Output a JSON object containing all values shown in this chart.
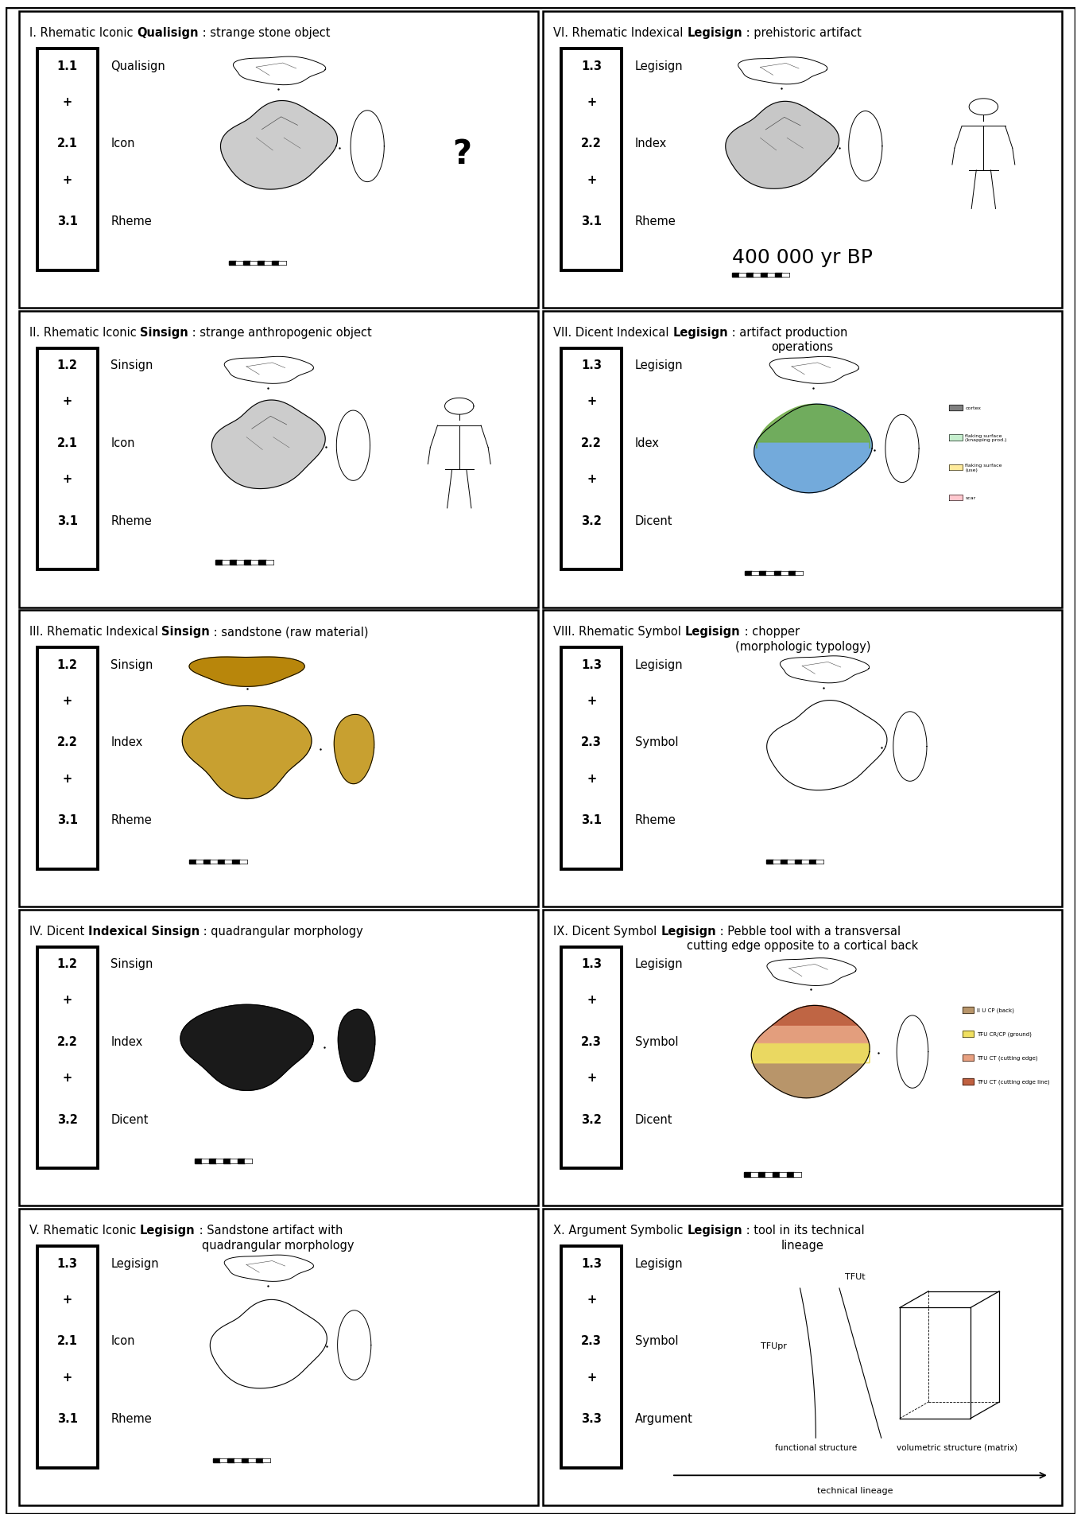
{
  "fig_width": 13.6,
  "fig_height": 19.15,
  "dpi": 100,
  "panels": [
    {
      "id": "I",
      "title_parts": [
        {
          "text": "I. Rhematic Iconic ",
          "bold": false
        },
        {
          "text": "Qualisign",
          "bold": true
        },
        {
          "text": " : strange stone object",
          "bold": false
        }
      ],
      "title_line2": "",
      "row": 0,
      "col": 0,
      "box_numbers": [
        "1.1",
        "+",
        "2.1",
        "+",
        "3.1"
      ],
      "box_labels": [
        "Qualisign",
        "",
        "Icon",
        "",
        "Rheme"
      ],
      "extra_symbol": "?",
      "extra_text": "",
      "has_human": false,
      "artifact_type": "chopper_gray"
    },
    {
      "id": "VI",
      "title_parts": [
        {
          "text": "VI. Rhematic Indexical ",
          "bold": false
        },
        {
          "text": "Legisign",
          "bold": true
        },
        {
          "text": " : prehistoric artifact",
          "bold": false
        }
      ],
      "title_line2": "",
      "row": 0,
      "col": 1,
      "box_numbers": [
        "1.3",
        "+",
        "2.2",
        "+",
        "3.1"
      ],
      "box_labels": [
        "Legisign",
        "",
        "Index",
        "",
        "Rheme"
      ],
      "extra_symbol": "",
      "extra_text": "400 000 yr BP",
      "has_human": true,
      "artifact_type": "chopper_outline"
    },
    {
      "id": "II",
      "title_parts": [
        {
          "text": "II. Rhematic Iconic ",
          "bold": false
        },
        {
          "text": "Sinsign",
          "bold": true
        },
        {
          "text": " : strange anthropogenic object",
          "bold": false
        }
      ],
      "title_line2": "",
      "row": 1,
      "col": 0,
      "box_numbers": [
        "1.2",
        "+",
        "2.1",
        "+",
        "3.1"
      ],
      "box_labels": [
        "Sinsign",
        "",
        "Icon",
        "",
        "Rheme"
      ],
      "extra_symbol": "",
      "extra_text": "",
      "has_human": true,
      "artifact_type": "chopper_gray"
    },
    {
      "id": "VII",
      "title_parts": [
        {
          "text": "VII. Dicent Indexical ",
          "bold": false
        },
        {
          "text": "Legisign",
          "bold": true
        },
        {
          "text": " : artifact production",
          "bold": false
        }
      ],
      "title_line2": "operations",
      "row": 1,
      "col": 1,
      "box_numbers": [
        "1.3",
        "+",
        "2.2",
        "+",
        "3.2"
      ],
      "box_labels": [
        "Legisign",
        "",
        "Idex",
        "",
        "Dicent"
      ],
      "extra_symbol": "",
      "extra_text": "",
      "has_human": false,
      "artifact_type": "chopper_colored_vii"
    },
    {
      "id": "III",
      "title_parts": [
        {
          "text": "III. Rhematic Indexical ",
          "bold": false
        },
        {
          "text": "Sinsign",
          "bold": true
        },
        {
          "text": " : sandstone (raw material)",
          "bold": false
        }
      ],
      "title_line2": "",
      "row": 2,
      "col": 0,
      "box_numbers": [
        "1.2",
        "+",
        "2.2",
        "+",
        "3.1"
      ],
      "box_labels": [
        "Sinsign",
        "",
        "Index",
        "",
        "Rheme"
      ],
      "extra_symbol": "",
      "extra_text": "",
      "has_human": false,
      "artifact_type": "stone_brown"
    },
    {
      "id": "VIII",
      "title_parts": [
        {
          "text": "VIII. Rhematic Symbol ",
          "bold": false
        },
        {
          "text": "Legisign",
          "bold": true
        },
        {
          "text": " : chopper",
          "bold": false
        }
      ],
      "title_line2": "(morphologic typology)",
      "row": 2,
      "col": 1,
      "box_numbers": [
        "1.3",
        "+",
        "2.3",
        "+",
        "3.1"
      ],
      "box_labels": [
        "Legisign",
        "",
        "Symbol",
        "",
        "Rheme"
      ],
      "extra_symbol": "",
      "extra_text": "",
      "has_human": false,
      "artifact_type": "chopper_outline_stippled"
    },
    {
      "id": "IV",
      "title_parts": [
        {
          "text": "IV. Dicent ",
          "bold": false
        },
        {
          "text": "Indexical Sinsign",
          "bold": true
        },
        {
          "text": " : quadrangular morphology",
          "bold": false
        }
      ],
      "title_line2": "",
      "row": 3,
      "col": 0,
      "box_numbers": [
        "1.2",
        "+",
        "2.2",
        "+",
        "3.2"
      ],
      "box_labels": [
        "Sinsign",
        "",
        "Index",
        "",
        "Dicent"
      ],
      "extra_symbol": "",
      "extra_text": "",
      "has_human": false,
      "artifact_type": "stone_dark"
    },
    {
      "id": "IX",
      "title_parts": [
        {
          "text": "IX. Dicent Symbol ",
          "bold": false
        },
        {
          "text": "Legisign",
          "bold": true
        },
        {
          "text": " : Pebble tool with a transversal",
          "bold": false
        }
      ],
      "title_line2": "cutting edge opposite to a cortical back",
      "row": 3,
      "col": 1,
      "box_numbers": [
        "1.3",
        "+",
        "2.3",
        "+",
        "3.2"
      ],
      "box_labels": [
        "Legisign",
        "",
        "Symbol",
        "",
        "Dicent"
      ],
      "extra_symbol": "",
      "extra_text": "",
      "has_human": false,
      "artifact_type": "chopper_colored_ix"
    },
    {
      "id": "V",
      "title_parts": [
        {
          "text": "V. Rhematic Iconic ",
          "bold": false
        },
        {
          "text": "Legisign",
          "bold": true
        },
        {
          "text": " : Sandstone artifact with",
          "bold": false
        }
      ],
      "title_line2": "quadrangular morphology",
      "row": 4,
      "col": 0,
      "box_numbers": [
        "1.3",
        "+",
        "2.1",
        "+",
        "3.1"
      ],
      "box_labels": [
        "Legisign",
        "",
        "Icon",
        "",
        "Rheme"
      ],
      "extra_symbol": "",
      "extra_text": "",
      "has_human": false,
      "artifact_type": "chopper_outline"
    },
    {
      "id": "X",
      "title_parts": [
        {
          "text": "X. Argument Symbolic ",
          "bold": false
        },
        {
          "text": "Legisign",
          "bold": true
        },
        {
          "text": " : tool in its technical",
          "bold": false
        }
      ],
      "title_line2": "lineage",
      "row": 4,
      "col": 1,
      "box_numbers": [
        "1.3",
        "+",
        "2.3",
        "+",
        "3.3"
      ],
      "box_labels": [
        "Legisign",
        "",
        "Symbol",
        "",
        "Argument"
      ],
      "extra_symbol": "",
      "extra_text": "",
      "has_human": false,
      "artifact_type": "lineage_diagram"
    }
  ]
}
